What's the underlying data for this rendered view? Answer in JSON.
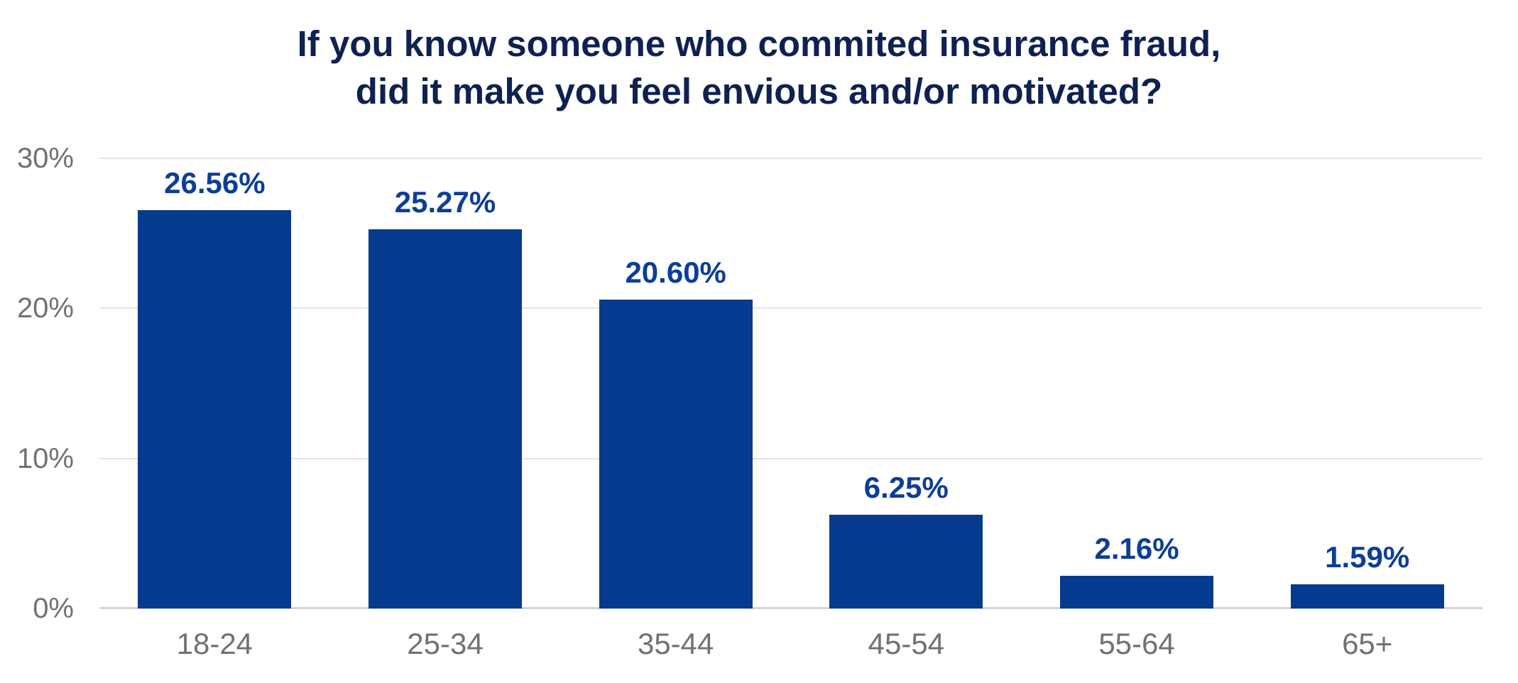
{
  "chart": {
    "title_line1": "If you know someone who commited insurance fraud,",
    "title_line2": "did it make you feel envious and/or motivated?"
  },
  "chart_data": {
    "type": "bar",
    "title": "If you know someone who commited insurance fraud, did it make you feel envious and/or motivated?",
    "categories": [
      "18-24",
      "25-34",
      "35-44",
      "45-54",
      "55-64",
      "65+"
    ],
    "values": [
      26.56,
      25.27,
      20.6,
      6.25,
      2.16,
      1.59
    ],
    "value_labels": [
      "26.56%",
      "25.27%",
      "20.60%",
      "6.25%",
      "2.16%",
      "1.59%"
    ],
    "xlabel": "",
    "ylabel": "",
    "ylim": [
      0,
      30
    ],
    "yticks": [
      0,
      10,
      20,
      30
    ],
    "ytick_labels": [
      "0%",
      "10%",
      "20%",
      "30%"
    ],
    "grid": true,
    "legend": false,
    "colors": {
      "bar": "#063a8e",
      "data_label": "#0d3e96",
      "title": "#0e2150",
      "axis_label": "#717171",
      "gridline": "#e4e4e4",
      "baseline": "#d4d4d4",
      "background": "#ffffff"
    }
  }
}
